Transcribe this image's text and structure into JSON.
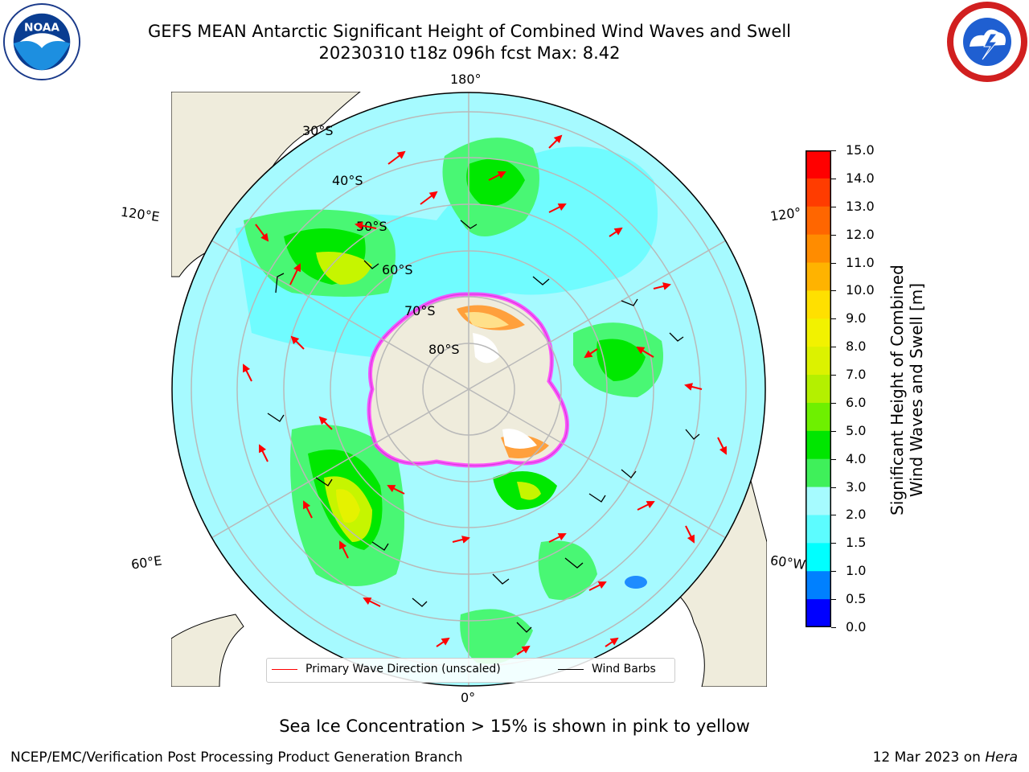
{
  "header": {
    "title_line1": "GEFS MEAN Antarctic Significant Height of Combined Wind Waves and Swell",
    "title_line2": "20230310 t18z 096h fcst   Max: 8.42"
  },
  "logos": {
    "left": "noaa-logo",
    "right": "national-weather-service-logo"
  },
  "map": {
    "projection": "south polar stereographic",
    "longitude_labels": {
      "top": "180°",
      "upper_left": "120°E",
      "upper_right": "120°",
      "lower_left": "60°E",
      "lower_right": "60°W",
      "bottom": "0°"
    },
    "latitude_labels": [
      "30°S",
      "40°S",
      "50°S",
      "60°S",
      "70°S",
      "80°S"
    ],
    "colors": {
      "land": "#efecdc",
      "ocean_1": "#a6faff",
      "ocean_2": "#5afcff",
      "waves_3": "#49f774",
      "waves_4": "#00e800",
      "waves_6": "#c6f500",
      "waves_8": "#e5f200",
      "low": "#1e8cff",
      "ice_pink": "#ff3cff",
      "ice_orange": "#ffa03c",
      "ice_yellow": "#ffe08a",
      "graticule": "#b9b9b9",
      "wave_arrow": "#ff0000",
      "barb": "#000000"
    }
  },
  "colorbar": {
    "ticks": [
      "15.0",
      "14.0",
      "13.0",
      "12.0",
      "11.0",
      "10.0",
      "9.0",
      "8.0",
      "7.0",
      "6.0",
      "5.0",
      "4.0",
      "3.0",
      "2.0",
      "1.5",
      "1.0",
      "0.5",
      "0.0"
    ],
    "colors": [
      "#ff0000",
      "#ff3c00",
      "#ff6600",
      "#ff8c00",
      "#ffb300",
      "#ffe000",
      "#f2f200",
      "#dcf200",
      "#b4f000",
      "#6ef000",
      "#00e600",
      "#3ff05a",
      "#a6fbff",
      "#5cfcff",
      "#00ffff",
      "#0080ff",
      "#0000ff"
    ],
    "label_line1": "Significant Height of Combined",
    "label_line2": "Wind Waves and Swell [m]"
  },
  "legend": {
    "wave": "Primary Wave Direction (unscaled)",
    "barbs": "Wind Barbs"
  },
  "footer": {
    "ice_note": "Sea Ice Concentration > 15% is shown in pink to yellow",
    "credit": "NCEP/EMC/Verification Post Processing Product Generation Branch",
    "date": "12 Mar 2023 on",
    "host": "Hera"
  }
}
